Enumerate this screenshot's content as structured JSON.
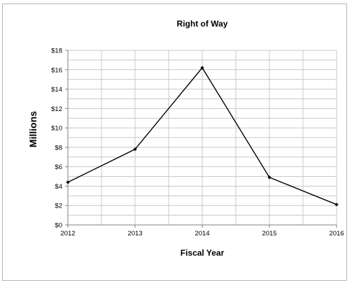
{
  "chart_data": {
    "type": "line",
    "title": "Right of Way",
    "xlabel": "Fiscal Year",
    "ylabel": "Millions",
    "x": [
      "2012",
      "2013",
      "2014",
      "2015",
      "2016"
    ],
    "series": [
      {
        "values": [
          4.4,
          7.8,
          16.2,
          4.9,
          2.1
        ]
      }
    ],
    "ylim": [
      0,
      18
    ],
    "y_ticks": [
      0,
      2,
      4,
      6,
      8,
      10,
      12,
      14,
      16,
      18
    ],
    "y_tick_labels": [
      "$0",
      "$2",
      "$4",
      "$6",
      "$8",
      "$10",
      "$12",
      "$14",
      "$16",
      "$18"
    ],
    "grid": true,
    "legend": "none",
    "colors": {
      "line": "#000000",
      "grid": "#c8c8c8",
      "axis": "#808080"
    }
  }
}
